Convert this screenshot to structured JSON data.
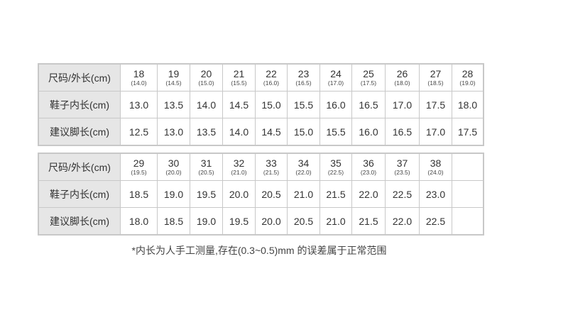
{
  "tables": [
    {
      "row_labels": [
        "尺码/外长(cm)",
        "鞋子内长(cm)",
        "建议脚长(cm)"
      ],
      "sizes": [
        "18",
        "19",
        "20",
        "21",
        "22",
        "23",
        "24",
        "25",
        "26",
        "27",
        "28"
      ],
      "outer_lengths": [
        "(14.0)",
        "(14.5)",
        "(15.0)",
        "(15.5)",
        "(16.0)",
        "(16.5)",
        "(17.0)",
        "(17.5)",
        "(18.0)",
        "(18.5)",
        "(19.0)"
      ],
      "inner_lengths": [
        "13.0",
        "13.5",
        "14.0",
        "14.5",
        "15.0",
        "15.5",
        "16.0",
        "16.5",
        "17.0",
        "17.5",
        "18.0"
      ],
      "foot_lengths": [
        "12.5",
        "13.0",
        "13.5",
        "14.0",
        "14.5",
        "15.0",
        "15.5",
        "16.0",
        "16.5",
        "17.0",
        "17.5"
      ]
    },
    {
      "row_labels": [
        "尺码/外长(cm)",
        "鞋子内长(cm)",
        "建议脚长(cm)"
      ],
      "sizes": [
        "29",
        "30",
        "31",
        "32",
        "33",
        "34",
        "35",
        "36",
        "37",
        "38",
        ""
      ],
      "outer_lengths": [
        "(19.5)",
        "(20.0)",
        "(20.5)",
        "(21.0)",
        "(21.5)",
        "(22.0)",
        "(22.5)",
        "(23.0)",
        "(23.5)",
        "(24.0)",
        ""
      ],
      "inner_lengths": [
        "18.5",
        "19.0",
        "19.5",
        "20.0",
        "20.5",
        "21.0",
        "21.5",
        "22.0",
        "22.5",
        "23.0",
        ""
      ],
      "foot_lengths": [
        "18.0",
        "18.5",
        "19.0",
        "19.5",
        "20.0",
        "20.5",
        "21.0",
        "21.5",
        "22.0",
        "22.5",
        ""
      ]
    }
  ],
  "footnote": "*内长为人手工测量,存在(0.3~0.5)mm 的误差属于正常范围"
}
